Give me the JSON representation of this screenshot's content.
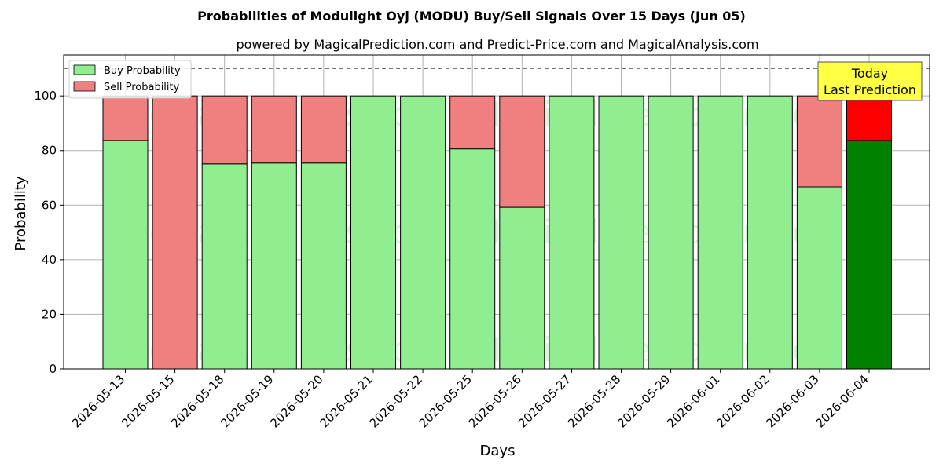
{
  "chart_data": {
    "type": "bar",
    "title": "Probabilities of Modulight Oyj (MODU) Buy/Sell Signals Over 15 Days (Jun 05)",
    "subtitle": "powered by MagicalPrediction.com and Predict-Price.com and MagicalAnalysis.com",
    "xlabel": "Days",
    "ylabel": "Probability",
    "ylim": [
      0,
      115
    ],
    "yticks": [
      0,
      20,
      40,
      60,
      80,
      100
    ],
    "grid": true,
    "stacked": true,
    "reference_line": 110,
    "legend_position": "top-left",
    "categories": [
      "2026-05-13",
      "2026-05-15",
      "2026-05-18",
      "2026-05-19",
      "2026-05-20",
      "2026-05-21",
      "2026-05-22",
      "2026-05-25",
      "2026-05-26",
      "2026-05-27",
      "2026-05-28",
      "2026-05-29",
      "2026-06-01",
      "2026-06-02",
      "2026-06-03",
      "2026-06-04"
    ],
    "series": [
      {
        "name": "Buy Probability",
        "color": "#90ee90",
        "highlight_color": "#008000",
        "values": [
          83.7,
          0,
          75.1,
          75.4,
          75.4,
          100,
          100,
          80.6,
          59.2,
          100,
          100,
          100,
          100,
          100,
          66.7,
          83.7
        ]
      },
      {
        "name": "Sell Probability",
        "color": "#f08080",
        "highlight_color": "#ff0000",
        "values": [
          16.3,
          100,
          24.9,
          24.6,
          24.6,
          0,
          0,
          19.4,
          40.8,
          0,
          0,
          0,
          0,
          0,
          33.3,
          16.3
        ]
      }
    ],
    "annotation": {
      "line1": "Today",
      "line2": "Last Prediction",
      "color": "#ffff44"
    },
    "watermarks": [
      "MagicalAnalysis.com",
      "MagicalPrediction.com"
    ]
  }
}
